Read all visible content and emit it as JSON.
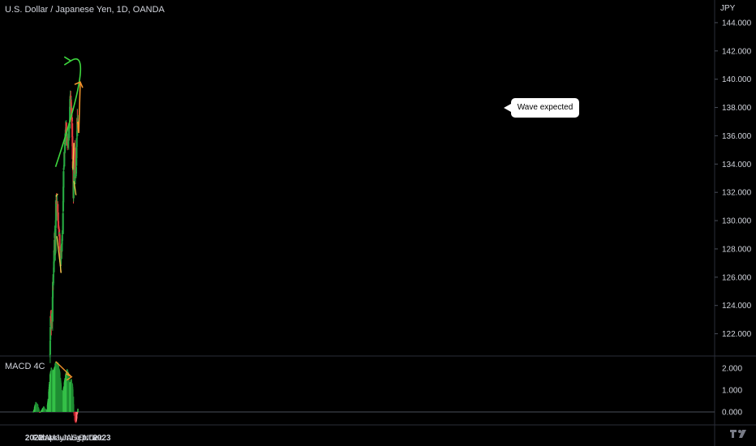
{
  "header": {
    "title": "U.S. Dollar / Japanese Yen, 1D, OANDA",
    "currency": "JPY"
  },
  "annotation": {
    "callout": "Wave expected"
  },
  "chart_data": [
    {
      "type": "candlestick",
      "title": "U.S. Dollar / Japanese Yen, 1D, OANDA",
      "ylabel": "JPY",
      "ylim": [
        120.6,
        145.2
      ],
      "y_ticks": [
        "144.000",
        "142.000",
        "140.000",
        "138.000",
        "136.000",
        "134.000",
        "132.000",
        "130.000",
        "128.000",
        "126.000",
        "124.000",
        "122.000"
      ],
      "x_ticks": [
        "2022",
        "Feb",
        "Mar",
        "Apr",
        "May",
        "Jun",
        "Jul",
        "Aug",
        "Sep",
        "Oct",
        "Nov",
        "Dec",
        "2023"
      ],
      "grid": false,
      "anchors": [
        [
          "2022-03-28",
          120.5
        ],
        [
          "2022-03-31",
          123.6
        ],
        [
          "2022-04-07",
          122.5
        ],
        [
          "2022-04-12",
          125.3
        ],
        [
          "2022-04-19",
          127.6
        ],
        [
          "2022-04-22",
          128.8
        ],
        [
          "2022-04-26",
          128.0
        ],
        [
          "2022-04-29",
          131.1
        ],
        [
          "2022-05-04",
          130.8
        ],
        [
          "2022-05-09",
          131.0
        ],
        [
          "2022-05-13",
          129.5
        ],
        [
          "2022-05-18",
          128.8
        ],
        [
          "2022-05-24",
          126.8
        ],
        [
          "2022-05-31",
          128.4
        ],
        [
          "2022-06-06",
          130.5
        ],
        [
          "2022-06-10",
          134.0
        ],
        [
          "2022-06-15",
          135.3
        ],
        [
          "2022-06-22",
          136.6
        ],
        [
          "2022-06-28",
          135.6
        ],
        [
          "2022-07-01",
          135.3
        ],
        [
          "2022-07-06",
          135.8
        ],
        [
          "2022-07-12",
          137.0
        ],
        [
          "2022-07-14",
          138.9
        ],
        [
          "2022-07-20",
          138.2
        ],
        [
          "2022-07-25",
          136.8
        ],
        [
          "2022-08-01",
          131.8
        ],
        [
          "2022-08-04",
          133.5
        ],
        [
          "2022-08-08",
          135.0
        ],
        [
          "2022-08-11",
          133.0
        ],
        [
          "2022-08-15",
          133.4
        ],
        [
          "2022-08-18",
          135.2
        ],
        [
          "2022-08-22",
          137.0
        ],
        [
          "2022-08-25",
          136.8
        ]
      ]
    },
    {
      "type": "bar",
      "title": "MACD 4C",
      "ylim": [
        -0.6,
        2.35
      ],
      "y_ticks": [
        "2.000",
        "1.000",
        "0.000"
      ],
      "anchors": [
        [
          "2021-12-28",
          0.0
        ],
        [
          "2022-01-10",
          0.45
        ],
        [
          "2022-01-20",
          0.35
        ],
        [
          "2022-02-01",
          -0.04
        ],
        [
          "2022-02-10",
          0.08
        ],
        [
          "2022-02-22",
          0.25
        ],
        [
          "2022-03-01",
          0.15
        ],
        [
          "2022-03-10",
          0.05
        ],
        [
          "2022-03-18",
          0.6
        ],
        [
          "2022-03-28",
          1.7
        ],
        [
          "2022-04-04",
          2.02
        ],
        [
          "2022-04-10",
          1.85
        ],
        [
          "2022-04-20",
          2.0
        ],
        [
          "2022-04-28",
          2.3
        ],
        [
          "2022-05-10",
          2.25
        ],
        [
          "2022-05-20",
          1.8
        ],
        [
          "2022-05-30",
          1.0
        ],
        [
          "2022-06-06",
          0.9
        ],
        [
          "2022-06-12",
          1.3
        ],
        [
          "2022-06-20",
          1.7
        ],
        [
          "2022-06-28",
          1.95
        ],
        [
          "2022-07-05",
          1.8
        ],
        [
          "2022-07-12",
          1.3
        ],
        [
          "2022-07-20",
          1.5
        ],
        [
          "2022-07-27",
          1.25
        ],
        [
          "2022-08-01",
          0.7
        ],
        [
          "2022-08-03",
          0.0
        ],
        [
          "2022-08-07",
          -0.35
        ],
        [
          "2022-08-14",
          -0.55
        ],
        [
          "2022-08-19",
          -0.3
        ],
        [
          "2022-08-23",
          -0.05
        ],
        [
          "2022-08-25",
          0.15
        ]
      ]
    }
  ],
  "drawings": {
    "green_arc": [
      [
        "2022-04-27",
        133.8
      ],
      [
        "2022-07-18",
        141.3
      ]
    ],
    "price_upper": [
      [
        "2022-04-29",
        131.7
      ],
      [
        "2022-05-09",
        131.9
      ]
    ],
    "price_lower": [
      [
        "2022-05-04",
        128.9
      ],
      [
        "2022-05-27",
        126.3
      ]
    ],
    "price_upper2": [
      [
        "2022-07-29",
        133.6
      ],
      [
        "2022-08-04",
        135.5
      ]
    ],
    "price_lower2": [
      [
        "2022-08-04",
        132.8
      ],
      [
        "2022-08-15",
        131.8
      ]
    ],
    "orange_wave": [
      [
        "2022-08-24",
        137.0
      ],
      [
        "2022-08-30",
        136.2
      ],
      [
        "2022-09-07",
        139.8
      ]
    ],
    "macd_divergence": [
      [
        "2022-04-28",
        2.3
      ],
      [
        "2022-07-22",
        1.6
      ]
    ]
  },
  "colors": {
    "up": "#26a640",
    "down": "#e03a3a",
    "macd_pos": "#26a640",
    "macd_neg": "#e03a3a",
    "arc": "#3ed83e",
    "trend_yellow": "#e8d24c",
    "wave": "#f0932b",
    "axis_text": "#d1d4dc"
  }
}
